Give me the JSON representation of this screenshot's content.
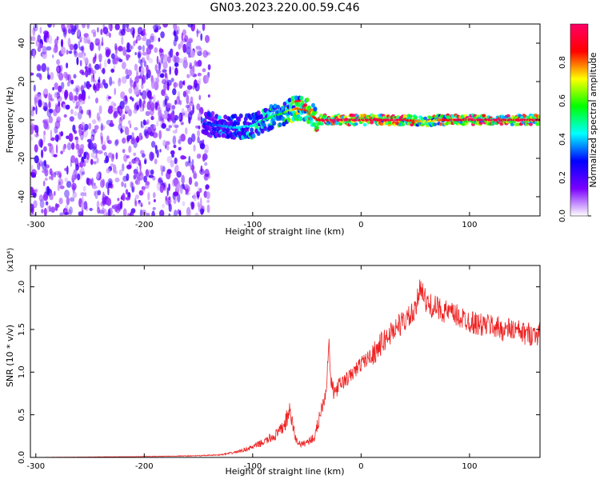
{
  "title": "GN03.2023.220.00.59.C46",
  "chart_data": [
    {
      "type": "heatmap",
      "xlabel": "Height of straight line (km)",
      "ylabel": "Frequency (Hz)",
      "xlim": [
        -305,
        165
      ],
      "ylim": [
        -50,
        50
      ],
      "x_ticks": [
        -300,
        -200,
        -100,
        0,
        100
      ],
      "y_ticks": [
        -40,
        -20,
        0,
        20,
        40
      ],
      "colorbar": {
        "label": "Normalized spectral amplitude",
        "range": [
          0.0,
          1.0
        ],
        "ticks": [
          "0.0",
          "0.2",
          "0.4",
          "0.6",
          "0.8"
        ],
        "colormap": [
          "#ffffff",
          "#7a00ff",
          "#0000ff",
          "#00ffff",
          "#00ff00",
          "#ffff00",
          "#ff0000",
          "#ff0066"
        ]
      },
      "noise_region": {
        "x_range": [
          -305,
          -140
        ],
        "y_range": [
          -50,
          50
        ],
        "amplitude": 0.15
      },
      "ridge": {
        "x": [
          -145,
          -130,
          -115,
          -100,
          -90,
          -80,
          -70,
          -60,
          -50,
          -45,
          -40,
          -30,
          -20,
          0,
          20,
          40,
          60,
          70,
          80,
          100,
          120,
          140,
          165
        ],
        "freq": [
          -2,
          -3,
          -4,
          -3,
          0,
          2,
          4,
          6,
          5,
          2,
          0,
          0,
          0,
          0,
          0,
          0,
          -1,
          0,
          0,
          0,
          0,
          0,
          0
        ],
        "amplitude": [
          0.3,
          0.35,
          0.4,
          0.45,
          0.5,
          0.55,
          0.6,
          0.8,
          0.85,
          0.8,
          0.9,
          0.95,
          0.98,
          0.95,
          0.95,
          0.95,
          0.7,
          0.75,
          0.9,
          0.95,
          0.95,
          0.95,
          0.95
        ]
      }
    },
    {
      "type": "line",
      "xlabel": "Height of straight line (km)",
      "ylabel": "SNR (10 * v/v)",
      "y_multiplier": "(x10⁴)",
      "xlim": [
        -305,
        165
      ],
      "ylim": [
        0,
        2.25
      ],
      "x_ticks": [
        -300,
        -200,
        -100,
        0,
        100
      ],
      "y_ticks": [
        "0.0",
        "0.5",
        "1.0",
        "1.5",
        "2.0"
      ],
      "series": [
        {
          "color": "#ee2222",
          "x": [
            -305,
            -200,
            -150,
            -130,
            -120,
            -110,
            -100,
            -90,
            -80,
            -75,
            -70,
            -66,
            -60,
            -55,
            -50,
            -45,
            -42,
            -40,
            -36,
            -32,
            -30,
            -28,
            -25,
            -20,
            -10,
            0,
            10,
            20,
            30,
            40,
            50,
            55,
            60,
            70,
            80,
            90,
            100,
            110,
            120,
            130,
            140,
            150,
            165
          ],
          "y": [
            0.0,
            0.01,
            0.02,
            0.03,
            0.05,
            0.08,
            0.12,
            0.18,
            0.25,
            0.3,
            0.4,
            0.55,
            0.2,
            0.15,
            0.18,
            0.22,
            0.25,
            0.4,
            0.6,
            0.8,
            1.4,
            0.9,
            0.75,
            0.85,
            0.95,
            1.1,
            1.2,
            1.35,
            1.5,
            1.6,
            1.7,
            2.05,
            1.8,
            1.75,
            1.7,
            1.65,
            1.6,
            1.55,
            1.55,
            1.5,
            1.5,
            1.45,
            1.45
          ]
        }
      ]
    }
  ]
}
